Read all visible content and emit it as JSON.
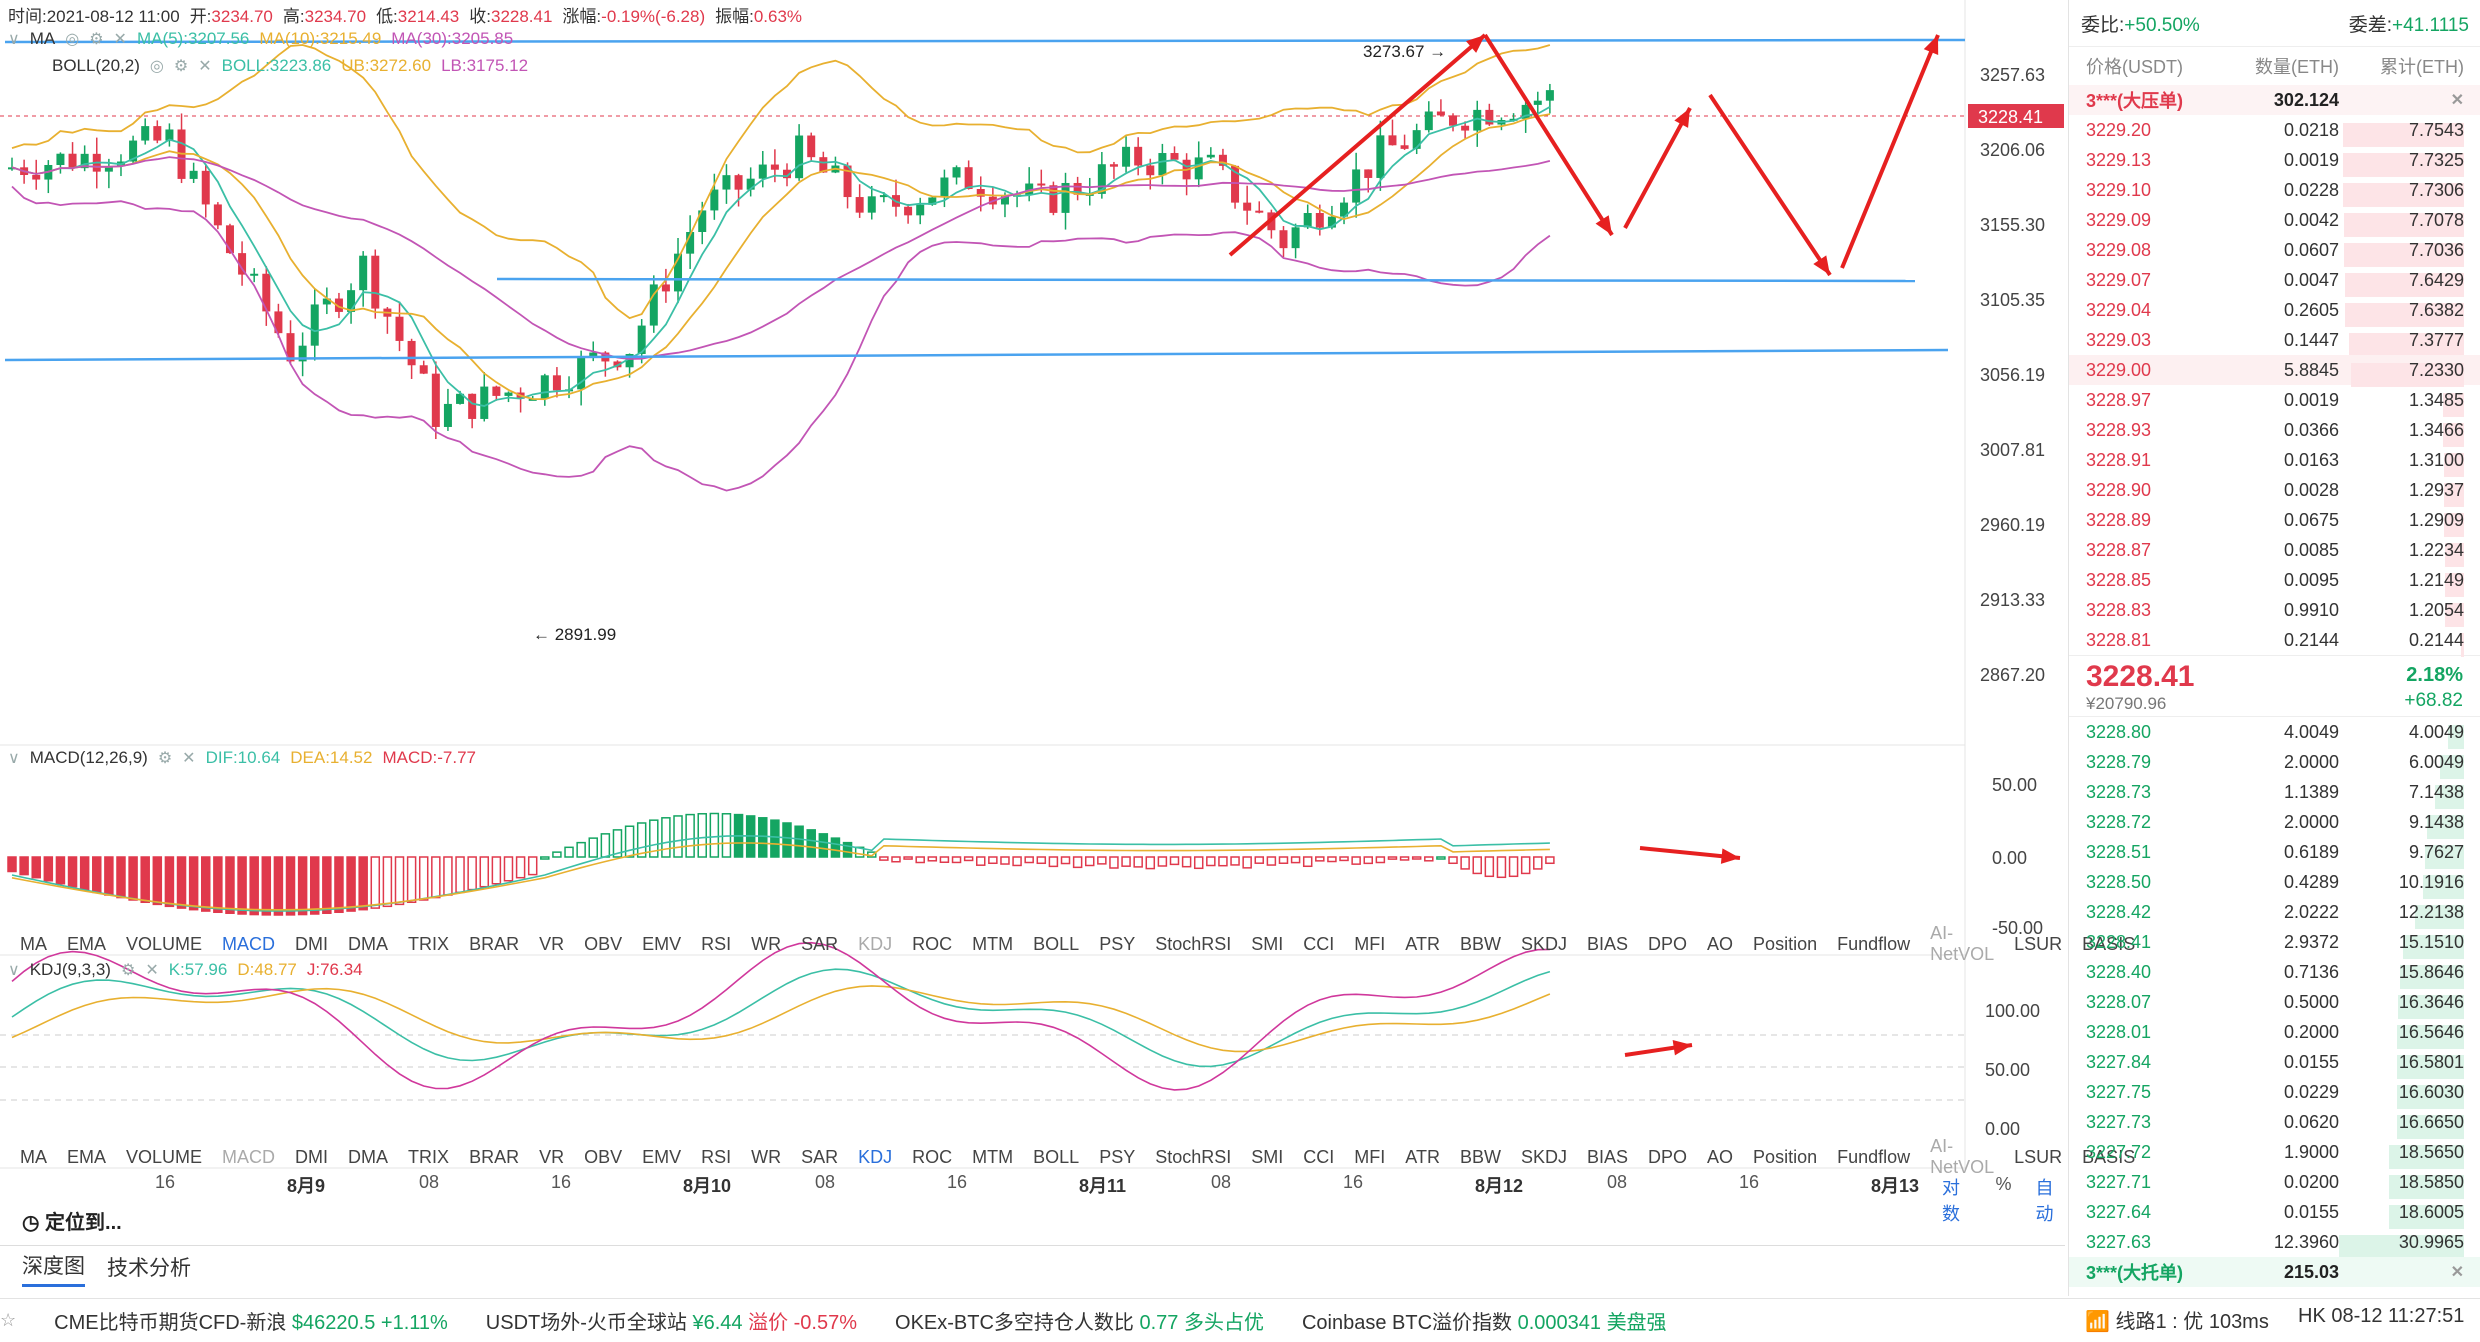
{
  "header": {
    "time_label": "时间:2021-08-12 11:00",
    "open_label": "开:",
    "open": "3234.70",
    "high_label": "高:",
    "high": "3234.70",
    "low_label": "低:",
    "low": "3214.43",
    "close_label": "收:",
    "close": "3228.41",
    "change_label": "涨幅:",
    "change": "-0.19%(-6.28)",
    "amp_label": "振幅:",
    "amp": "0.63%"
  },
  "ma_legend": {
    "name": "MA",
    "ma5": "MA(5):3207.56",
    "ma10": "MA(10):3215.49",
    "ma30": "MA(30):3205.85"
  },
  "boll_legend": {
    "name": "BOLL(20,2)",
    "boll": "BOLL:3223.86",
    "ub": "UB:3272.60",
    "lb": "LB:3175.12"
  },
  "macd_legend": {
    "name": "MACD(12,26,9)",
    "dif": "DIF:10.64",
    "dea": "DEA:14.52",
    "macd": "MACD:-7.77"
  },
  "kdj_legend": {
    "name": "KDJ(9,3,3)",
    "k": "K:57.96",
    "d": "D:48.77",
    "j": "J:76.34"
  },
  "price_axis": [
    "3257.63",
    "3206.06",
    "3155.30",
    "3105.35",
    "3056.19",
    "3007.81",
    "2960.19",
    "2913.33",
    "2867.20"
  ],
  "current_price_tag": "3228.41",
  "annotations": {
    "high": "3273.67 →",
    "low": "← 2891.99"
  },
  "macd_axis": [
    "50.00",
    "0.00",
    "-50.00"
  ],
  "kdj_axis": [
    "100.00",
    "50.00",
    "0.00"
  ],
  "indicator_tabs": [
    "MA",
    "EMA",
    "VOLUME",
    "MACD",
    "DMI",
    "DMA",
    "TRIX",
    "BRAR",
    "VR",
    "OBV",
    "EMV",
    "RSI",
    "WR",
    "SAR",
    "KDJ",
    "ROC",
    "MTM",
    "BOLL",
    "PSY",
    "StochRSI",
    "SMI",
    "CCI",
    "MFI",
    "ATR",
    "BBW",
    "SKDJ",
    "BIAS",
    "DPO",
    "AO",
    "Position",
    "Fundflow",
    "AI-NetVOL",
    "LSUR",
    "BASIS"
  ],
  "x_axis": [
    {
      "label": "16",
      "bold": false
    },
    {
      "label": "8月9",
      "bold": true
    },
    {
      "label": "08",
      "bold": false
    },
    {
      "label": "16",
      "bold": false
    },
    {
      "label": "8月10",
      "bold": true
    },
    {
      "label": "08",
      "bold": false
    },
    {
      "label": "16",
      "bold": false
    },
    {
      "label": "8月11",
      "bold": true
    },
    {
      "label": "08",
      "bold": false
    },
    {
      "label": "16",
      "bold": false
    },
    {
      "label": "8月12",
      "bold": true
    },
    {
      "label": "08",
      "bold": false
    },
    {
      "label": "16",
      "bold": false
    },
    {
      "label": "8月13",
      "bold": true
    }
  ],
  "axis_options": {
    "log": "对数",
    "pct": "%",
    "auto": "自动"
  },
  "locate": "定位到...",
  "bottom_tabs": [
    "深度图",
    "技术分析"
  ],
  "ticker": [
    {
      "name": "CME比特币期货CFD-新浪",
      "value": "$46220.5",
      "change": "+1.11%"
    },
    {
      "name": "USDT场外-火币全球站",
      "value": "¥6.44",
      "change": "溢价 -0.57%"
    },
    {
      "name": "OKEx-BTC多空持仓人数比",
      "value": "0.77",
      "change": "多头占优"
    },
    {
      "name": "Coinbase BTC溢价指数",
      "value": "0.000341",
      "change": "美盘强"
    }
  ],
  "status": {
    "line": "线路1 : 优 103ms",
    "clock": "HK 08-12 11:27:51"
  },
  "orderbook": {
    "ratio_label": "委比:",
    "ratio": "+50.50%",
    "diff_label": "委差:",
    "diff": "+41.1115",
    "cols": [
      "价格(USDT)",
      "数量(ETH)",
      "累计(ETH)"
    ],
    "ask_wall": {
      "name": "3***(大压单)",
      "qty": "302.124"
    },
    "asks": [
      {
        "price": "3229.20",
        "qty": "0.0218",
        "cum": "7.7543"
      },
      {
        "price": "3229.13",
        "qty": "0.0019",
        "cum": "7.7325"
      },
      {
        "price": "3229.10",
        "qty": "0.0228",
        "cum": "7.7306"
      },
      {
        "price": "3229.09",
        "qty": "0.0042",
        "cum": "7.7078"
      },
      {
        "price": "3229.08",
        "qty": "0.0607",
        "cum": "7.7036"
      },
      {
        "price": "3229.07",
        "qty": "0.0047",
        "cum": "7.6429"
      },
      {
        "price": "3229.04",
        "qty": "0.2605",
        "cum": "7.6382"
      },
      {
        "price": "3229.03",
        "qty": "0.1447",
        "cum": "7.3777"
      },
      {
        "price": "3229.00",
        "qty": "5.8845",
        "cum": "7.2330"
      },
      {
        "price": "3228.97",
        "qty": "0.0019",
        "cum": "1.3485"
      },
      {
        "price": "3228.93",
        "qty": "0.0366",
        "cum": "1.3466"
      },
      {
        "price": "3228.91",
        "qty": "0.0163",
        "cum": "1.3100"
      },
      {
        "price": "3228.90",
        "qty": "0.0028",
        "cum": "1.2937"
      },
      {
        "price": "3228.89",
        "qty": "0.0675",
        "cum": "1.2909"
      },
      {
        "price": "3228.87",
        "qty": "0.0085",
        "cum": "1.2234"
      },
      {
        "price": "3228.85",
        "qty": "0.0095",
        "cum": "1.2149"
      },
      {
        "price": "3228.83",
        "qty": "0.9910",
        "cum": "1.2054"
      },
      {
        "price": "3228.81",
        "qty": "0.2144",
        "cum": "0.2144"
      }
    ],
    "last_price": "3228.41",
    "last_cny": "¥20790.96",
    "last_pct": "2.18%",
    "last_chg": "+68.82",
    "bids": [
      {
        "price": "3228.80",
        "qty": "4.0049",
        "cum": "4.0049"
      },
      {
        "price": "3228.79",
        "qty": "2.0000",
        "cum": "6.0049"
      },
      {
        "price": "3228.73",
        "qty": "1.1389",
        "cum": "7.1438"
      },
      {
        "price": "3228.72",
        "qty": "2.0000",
        "cum": "9.1438"
      },
      {
        "price": "3228.51",
        "qty": "0.6189",
        "cum": "9.7627"
      },
      {
        "price": "3228.50",
        "qty": "0.4289",
        "cum": "10.1916"
      },
      {
        "price": "3228.42",
        "qty": "2.0222",
        "cum": "12.2138"
      },
      {
        "price": "3228.41",
        "qty": "2.9372",
        "cum": "15.1510"
      },
      {
        "price": "3228.40",
        "qty": "0.7136",
        "cum": "15.8646"
      },
      {
        "price": "3228.07",
        "qty": "0.5000",
        "cum": "16.3646"
      },
      {
        "price": "3228.01",
        "qty": "0.2000",
        "cum": "16.5646"
      },
      {
        "price": "3227.84",
        "qty": "0.0155",
        "cum": "16.5801"
      },
      {
        "price": "3227.75",
        "qty": "0.0229",
        "cum": "16.6030"
      },
      {
        "price": "3227.73",
        "qty": "0.0620",
        "cum": "16.6650"
      },
      {
        "price": "3227.72",
        "qty": "1.9000",
        "cum": "18.5650"
      },
      {
        "price": "3227.71",
        "qty": "0.0200",
        "cum": "18.5850"
      },
      {
        "price": "3227.64",
        "qty": "0.0155",
        "cum": "18.6005"
      },
      {
        "price": "3227.63",
        "qty": "12.3960",
        "cum": "30.9965"
      }
    ],
    "bid_wall": {
      "name": "3***(大托单)",
      "qty": "215.03"
    }
  },
  "colors": {
    "up": "#14a562",
    "down": "#e0394c",
    "ma5": "#3bbfa6",
    "ma10": "#e8b030",
    "ma30": "#c255b5",
    "line": "#4aa3ef",
    "arrow": "#e62020"
  }
}
